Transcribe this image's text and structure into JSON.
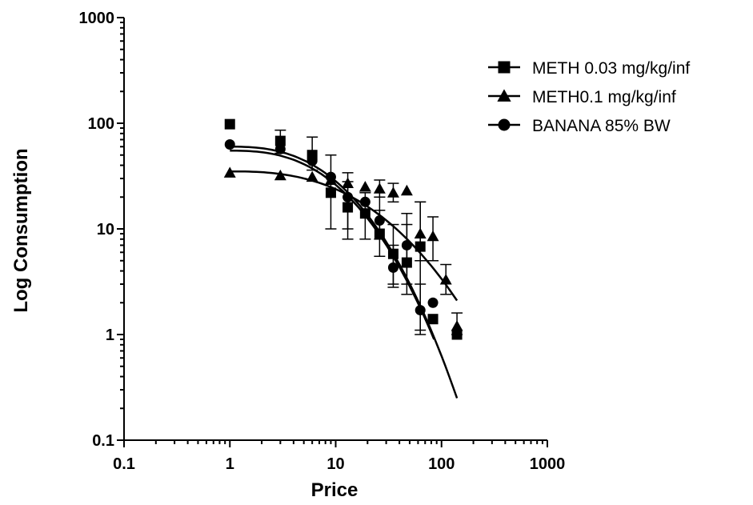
{
  "chart_data": {
    "type": "scatter",
    "title": "",
    "xlabel": "Price",
    "ylabel": "Log Consumption",
    "xscale": "log",
    "yscale": "log",
    "xlim": [
      0.1,
      1000
    ],
    "ylim": [
      0.1,
      1000
    ],
    "x_ticks": [
      "0.1",
      "1",
      "10",
      "100",
      "1000"
    ],
    "y_ticks": [
      "0.1",
      "1",
      "10",
      "100",
      "1000"
    ],
    "grid": false,
    "legend_position": "top-right",
    "color": "#000000",
    "series": [
      {
        "name": "METH 0.03 mg/kg/inf",
        "marker": "square",
        "points": [
          {
            "x": 1,
            "y": 98
          },
          {
            "x": 3,
            "y": 68,
            "err": [
              52,
              86
            ]
          },
          {
            "x": 6,
            "y": 50,
            "err": [
              36,
              74
            ]
          },
          {
            "x": 9,
            "y": 22,
            "err": [
              10,
              50
            ]
          },
          {
            "x": 13,
            "y": 16,
            "err": [
              8,
              34
            ]
          },
          {
            "x": 19,
            "y": 14,
            "err": [
              8,
              22
            ]
          },
          {
            "x": 26,
            "y": 9,
            "err": [
              5.5,
              15
            ]
          },
          {
            "x": 35,
            "y": 5.8,
            "err": [
              3,
              11
            ]
          },
          {
            "x": 47,
            "y": 4.8,
            "err": [
              2.4,
              14
            ]
          },
          {
            "x": 63,
            "y": 6.8,
            "err": [
              1.1,
              18
            ]
          },
          {
            "x": 83,
            "y": 1.4
          },
          {
            "x": 140,
            "y": 1.0
          }
        ],
        "fit": {
          "x_start": 1,
          "x_end": 85,
          "y_start": 55,
          "y_end": 0.9
        }
      },
      {
        "name": "METH0.1 mg/kg/inf",
        "marker": "triangle",
        "points": [
          {
            "x": 1,
            "y": 34
          },
          {
            "x": 3,
            "y": 32
          },
          {
            "x": 6,
            "y": 31
          },
          {
            "x": 9,
            "y": 29
          },
          {
            "x": 13,
            "y": 27
          },
          {
            "x": 19,
            "y": 25
          },
          {
            "x": 26,
            "y": 24,
            "err": [
              20,
              29
            ]
          },
          {
            "x": 35,
            "y": 22,
            "err": [
              18,
              27
            ]
          },
          {
            "x": 47,
            "y": 23
          },
          {
            "x": 63,
            "y": 9,
            "err": [
              5,
              18
            ]
          },
          {
            "x": 83,
            "y": 8.5,
            "err": [
              5,
              13
            ]
          },
          {
            "x": 110,
            "y": 3.3,
            "err": [
              2.4,
              4.6
            ]
          },
          {
            "x": 140,
            "y": 1.2,
            "err": [
              1.0,
              1.6
            ]
          }
        ],
        "fit": {
          "x_start": 1,
          "x_end": 140,
          "y_start": 35,
          "y_end": 2.1
        }
      },
      {
        "name": "BANANA 85% BW",
        "marker": "circle",
        "points": [
          {
            "x": 1,
            "y": 63
          },
          {
            "x": 3,
            "y": 57
          },
          {
            "x": 6,
            "y": 44
          },
          {
            "x": 9,
            "y": 31
          },
          {
            "x": 13,
            "y": 20,
            "err": [
              10,
              28
            ]
          },
          {
            "x": 19,
            "y": 18
          },
          {
            "x": 26,
            "y": 12,
            "err": [
              8,
              20
            ]
          },
          {
            "x": 35,
            "y": 4.3,
            "err": [
              2.8,
              7
            ]
          },
          {
            "x": 47,
            "y": 7,
            "err": [
              3,
              11
            ]
          },
          {
            "x": 63,
            "y": 1.7,
            "err": [
              1.0,
              3
            ]
          },
          {
            "x": 83,
            "y": 2.0
          }
        ],
        "fit": {
          "x_start": 1,
          "x_end": 140,
          "y_start": 60,
          "y_end": 0.25
        }
      }
    ]
  }
}
